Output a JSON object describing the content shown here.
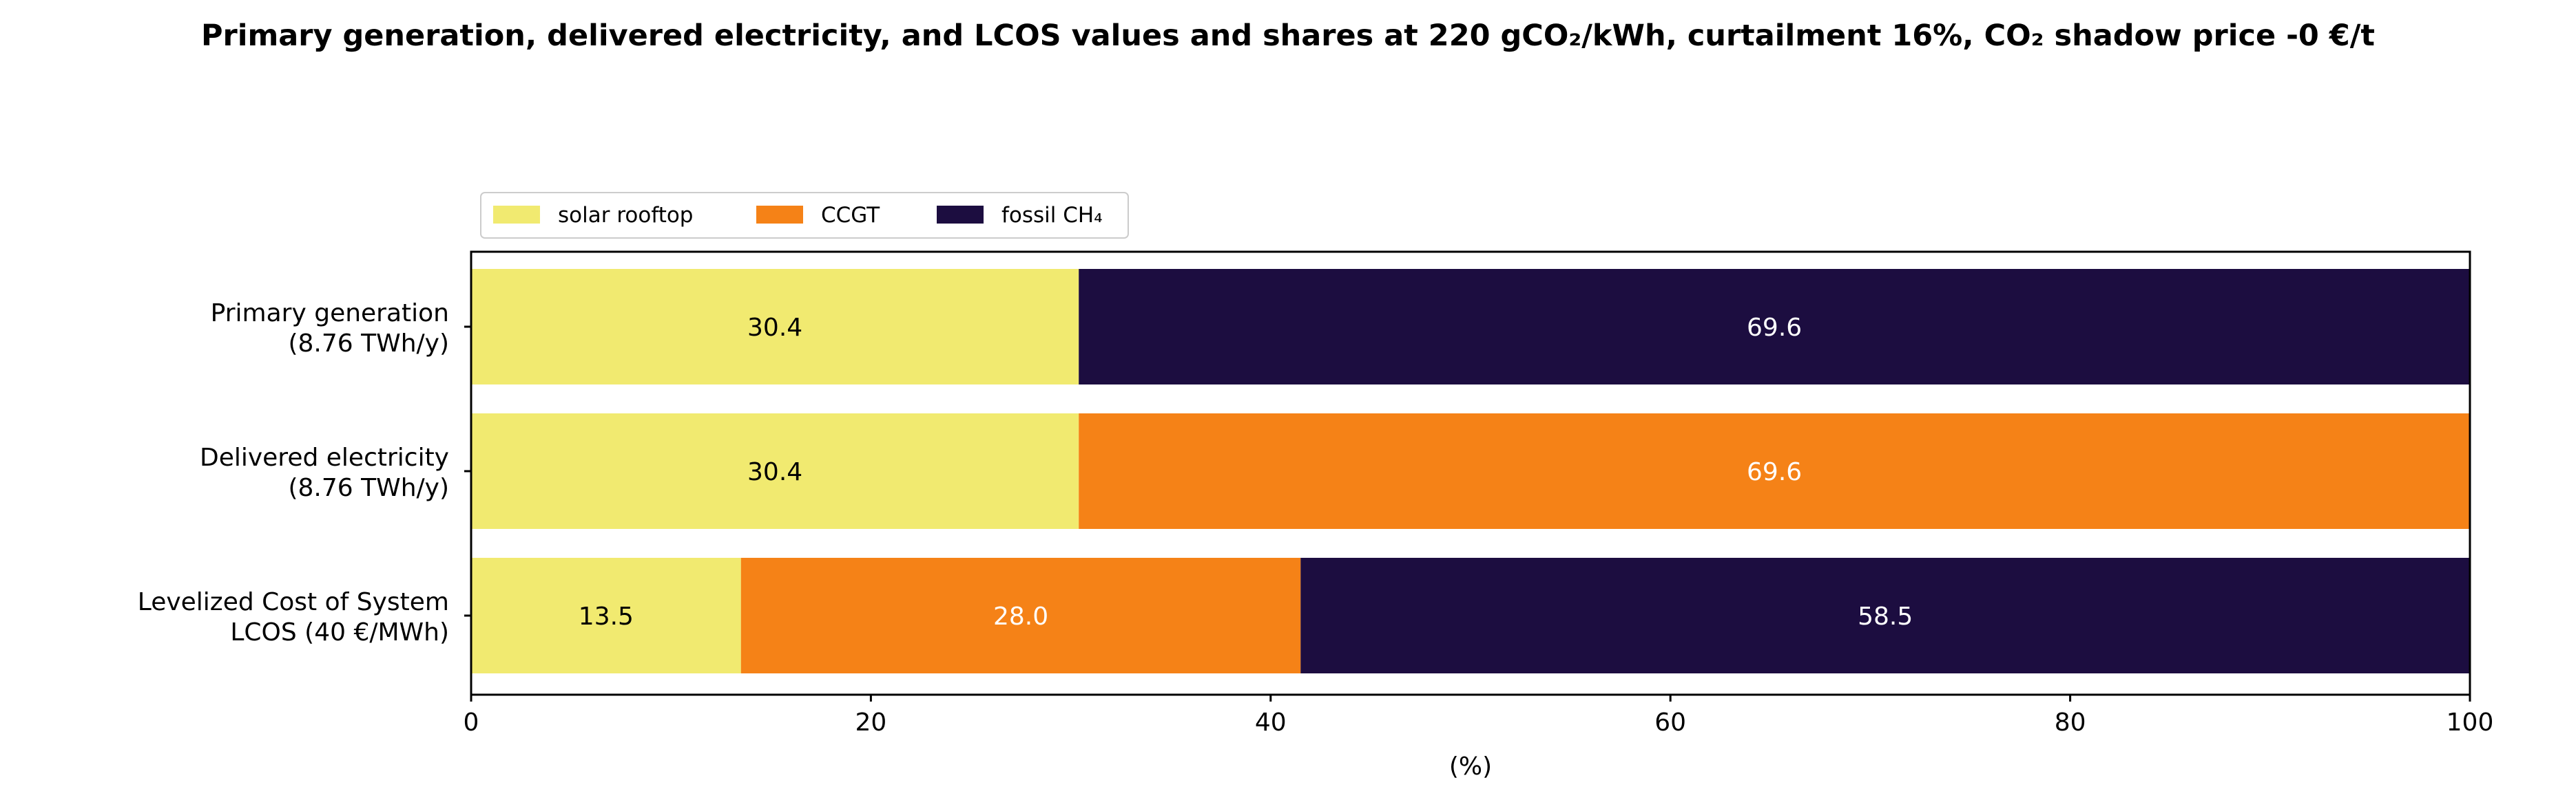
{
  "chart_data": {
    "type": "bar",
    "orientation": "horizontal",
    "stacked": true,
    "title": {
      "text": "Primary generation, delivered electricity, and LCOS values and shares at 220 gCO₂/kWh, curtailment 16%, CO₂ shadow price -0 €/t"
    },
    "xlabel": "(%)",
    "xlim": [
      0,
      100
    ],
    "xticks": [
      "0",
      "20",
      "40",
      "60",
      "80",
      "100"
    ],
    "grid": false,
    "legend_position": "top-left, above plot",
    "categories": [
      {
        "line1": "Primary generation",
        "line2": "(8.76 TWh/y)"
      },
      {
        "line1": "Delivered electricity",
        "line2": "(8.76 TWh/y)"
      },
      {
        "line1": "Levelized Cost of System",
        "line2": "LCOS  (40 €/MWh)"
      }
    ],
    "series": [
      {
        "name": "solar rooftop",
        "color": "#f1ea70",
        "label_color": "#000000",
        "values": [
          30.4,
          30.4,
          13.5
        ]
      },
      {
        "name": "CCGT",
        "color": "#f58217",
        "label_color": "#ffffff",
        "values": [
          0,
          69.6,
          28.0
        ]
      },
      {
        "name": "fossil CH₄",
        "color": "#1c0d40",
        "label_color": "#ffffff",
        "values": [
          69.6,
          0,
          58.5
        ]
      }
    ]
  }
}
